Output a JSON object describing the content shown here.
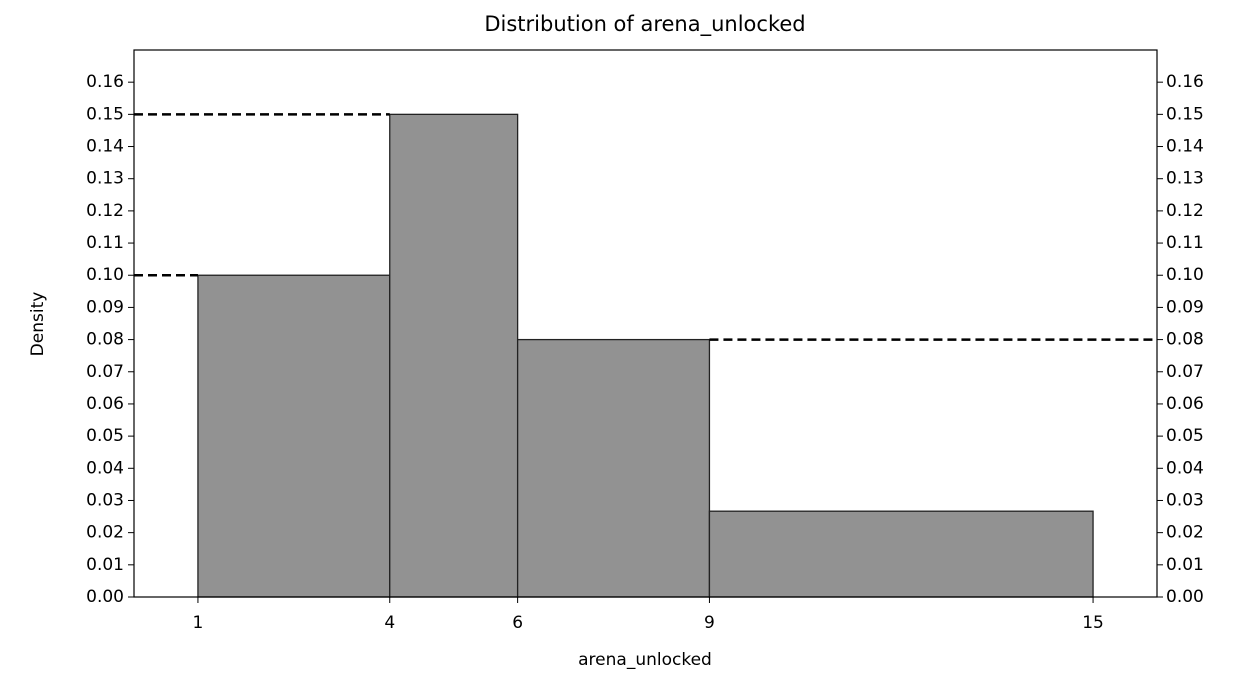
{
  "chart_data": {
    "type": "histogram",
    "title": "Distribution of arena_unlocked",
    "xlabel": "arena_unlocked",
    "ylabel": "Density",
    "bins": [
      1,
      4,
      6,
      9,
      15
    ],
    "values": [
      0.1,
      0.15,
      0.08,
      0.02667
    ],
    "color": "#929292",
    "edgecolor": "#222222",
    "xlim": [
      0,
      16
    ],
    "xticks": [
      1,
      4,
      6,
      9,
      15
    ],
    "ylim": [
      0,
      0.17
    ],
    "yticks": [
      {
        "value": 0,
        "label": "0.00"
      },
      0.01,
      0.02,
      0.03,
      0.04,
      0.05,
      0.06,
      0.07,
      0.08,
      0.09,
      {
        "value": 0.1,
        "label": "0.10"
      },
      0.11,
      0.12,
      0.13,
      0.14,
      0.15,
      0.16
    ],
    "mirror_yaxis": true,
    "reference_lines": [
      {
        "bin": 1,
        "side": "left"
      },
      {
        "bin": 0,
        "side": "left"
      },
      {
        "bin": 2,
        "side": "right"
      }
    ]
  }
}
